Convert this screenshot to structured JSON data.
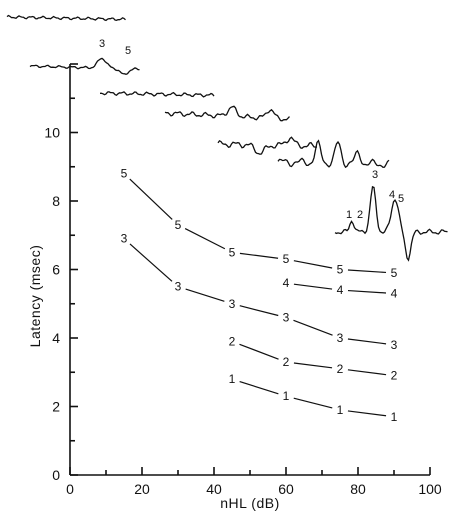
{
  "chart_data": {
    "type": "line",
    "title": "",
    "xlabel": "nHL (dB)",
    "ylabel": "Latency (msec)",
    "xlim": [
      0,
      100
    ],
    "ylim": [
      0,
      12
    ],
    "xticks": [
      "0",
      "20",
      "40",
      "60",
      "80",
      "100"
    ],
    "yticks": [
      "0",
      "2",
      "4",
      "6",
      "8",
      "10"
    ],
    "grid": false,
    "legend": "none",
    "marker_style": "wave number",
    "series": [
      {
        "name": "5",
        "x": [
          15,
          30,
          45,
          60,
          75,
          90
        ],
        "y": [
          8.8,
          7.3,
          6.5,
          6.3,
          6.0,
          5.9
        ]
      },
      {
        "name": "4",
        "x": [
          60,
          75,
          90
        ],
        "y": [
          5.6,
          5.4,
          5.3
        ]
      },
      {
        "name": "3",
        "x": [
          15,
          30,
          45,
          60,
          75,
          90
        ],
        "y": [
          6.9,
          5.5,
          5.0,
          4.6,
          4.0,
          3.8
        ]
      },
      {
        "name": "2",
        "x": [
          45,
          60,
          75,
          90
        ],
        "y": [
          3.9,
          3.3,
          3.1,
          2.9
        ]
      },
      {
        "name": "1",
        "x": [
          45,
          60,
          75,
          90
        ],
        "y": [
          2.8,
          2.3,
          1.9,
          1.7
        ]
      }
    ],
    "inset_waveform_labels": {
      "trace_15dB": [
        "3",
        "5"
      ],
      "trace_90dB": [
        "1",
        "2",
        "3",
        "4",
        "5"
      ]
    }
  }
}
